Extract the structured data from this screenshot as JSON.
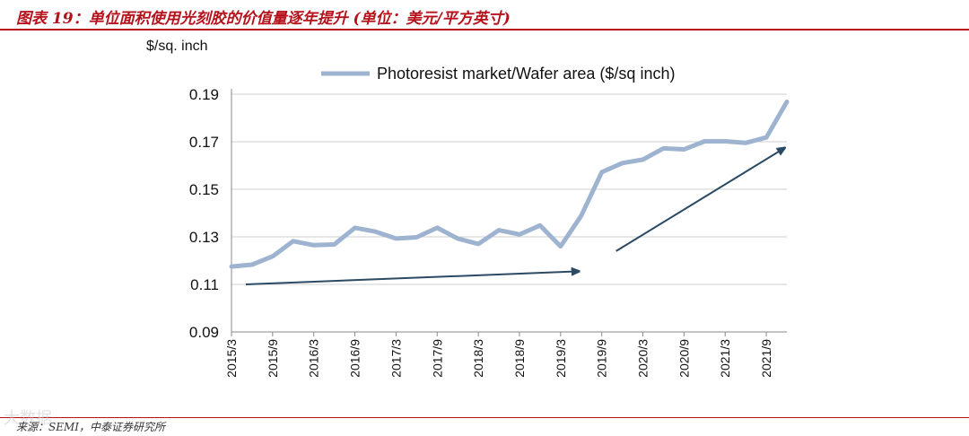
{
  "header": {
    "title": "图表 19：单位面积使用光刻胶的价值量逐年提升 (单位：美元/平方英寸)"
  },
  "footer": {
    "source": "来源：SEMI，中泰证券研究所",
    "watermark": "大数据"
  },
  "chart_data": {
    "type": "line",
    "ylabel": "$/sq. inch",
    "ylim": [
      0.09,
      0.19
    ],
    "yticks": [
      "0.19",
      "0.17",
      "0.15",
      "0.13",
      "0.11",
      "0.09"
    ],
    "xtick_labels": [
      "2015/3",
      "2015/9",
      "2016/3",
      "2016/9",
      "2017/3",
      "2017/9",
      "2018/3",
      "2018/9",
      "2019/3",
      "2019/9",
      "2020/3",
      "2020/9",
      "2021/3",
      "2021/9"
    ],
    "x": [
      "2015/3",
      "2015/6",
      "2015/9",
      "2015/12",
      "2016/3",
      "2016/6",
      "2016/9",
      "2016/12",
      "2017/3",
      "2017/6",
      "2017/9",
      "2017/12",
      "2018/3",
      "2018/6",
      "2018/9",
      "2018/12",
      "2019/3",
      "2019/6",
      "2019/9",
      "2019/12",
      "2020/3",
      "2020/6",
      "2020/9",
      "2020/12",
      "2021/3",
      "2021/6",
      "2021/9",
      "2021/12"
    ],
    "series": [
      {
        "name": "Photoresist market/Wafer area ($/sq inch)",
        "color": "#9db3cf",
        "values": [
          0.1175,
          0.1183,
          0.1218,
          0.1282,
          0.1265,
          0.1268,
          0.1338,
          0.1322,
          0.1293,
          0.1298,
          0.1338,
          0.1293,
          0.127,
          0.1328,
          0.131,
          0.1348,
          0.126,
          0.1388,
          0.1572,
          0.161,
          0.1625,
          0.1672,
          0.1668,
          0.1702,
          0.1702,
          0.1695,
          0.1718,
          0.1868
        ]
      }
    ],
    "legend": "top",
    "trend_arrows": {
      "color": "#2b4a63",
      "items": [
        {
          "from": [
            "2015/3",
            0.11
          ],
          "to": [
            "2019/6",
            0.1155
          ]
        },
        {
          "from": [
            "2019/9",
            0.124
          ],
          "to": [
            "2021/12",
            0.1675
          ]
        }
      ]
    }
  }
}
